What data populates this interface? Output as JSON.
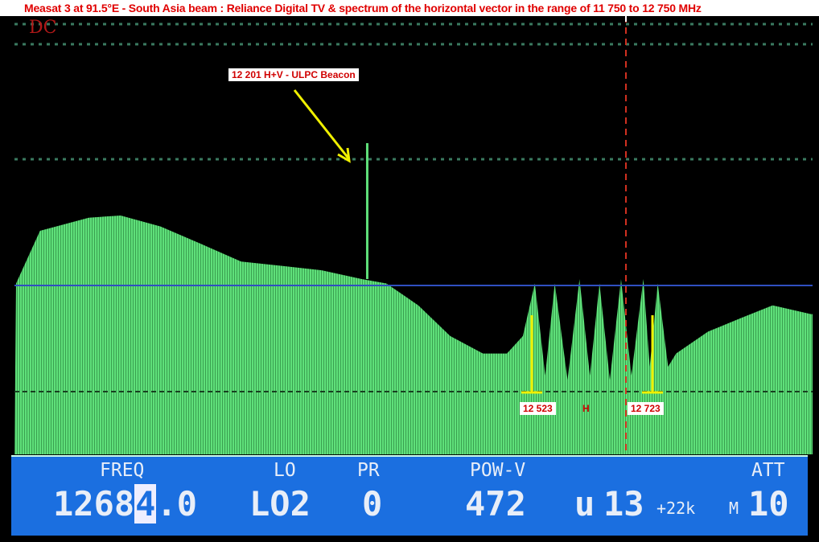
{
  "title": "Measat 3 at 91.5°E - South Asia beam : Reliance Digital TV & spectrum of the horizontal vector in the range of 11 750 to 12 750 MHz",
  "screen": {
    "mode": "DC",
    "colors": {
      "trace": "#5fe07a",
      "panel": "#1b6fe0",
      "label": "#d00000",
      "marker": "#f0f000"
    }
  },
  "annotations": {
    "beacon": "12 201 H+V - ULPC Beacon",
    "marker_left": "12 523",
    "polarization": "H",
    "marker_right": "12 723"
  },
  "status": {
    "freq_label": "FREQ",
    "freq_value_a": "1268",
    "freq_cursor": "4",
    "freq_value_b": ".0",
    "lo_label": "LO",
    "lo_value": "LO2",
    "pr_label": "PR",
    "pr_value": "0",
    "pow_label": "POW-V",
    "pow_value": "472",
    "unit": "u",
    "volt": "13",
    "tone": "+22k",
    "m": "M",
    "att_label": "ATT",
    "att_value": "10"
  },
  "chart_data": {
    "type": "area",
    "xlabel": "",
    "ylabel": "",
    "xlim": [
      11750,
      12750
    ],
    "ylim": [
      0,
      100
    ],
    "grid": true,
    "x": [
      11752,
      11782,
      11843,
      11883,
      11933,
      11984,
      12034,
      12085,
      12135,
      12185,
      12216,
      12256,
      12296,
      12337,
      12367,
      12387,
      12402,
      12415,
      12427,
      12443,
      12458,
      12471,
      12483,
      12496,
      12510,
      12523,
      12538,
      12546,
      12556,
      12569,
      12579,
      12619,
      12659,
      12700,
      12748
    ],
    "y": [
      39,
      51,
      54,
      54.5,
      52,
      48,
      44,
      43,
      42,
      40,
      39,
      34,
      27,
      23,
      23,
      27,
      39,
      18,
      39,
      17,
      40,
      18,
      39,
      17,
      40,
      18,
      40,
      20,
      39,
      20,
      23,
      28,
      31,
      34,
      32
    ],
    "beacon": {
      "x": 12192,
      "y": 71
    }
  }
}
